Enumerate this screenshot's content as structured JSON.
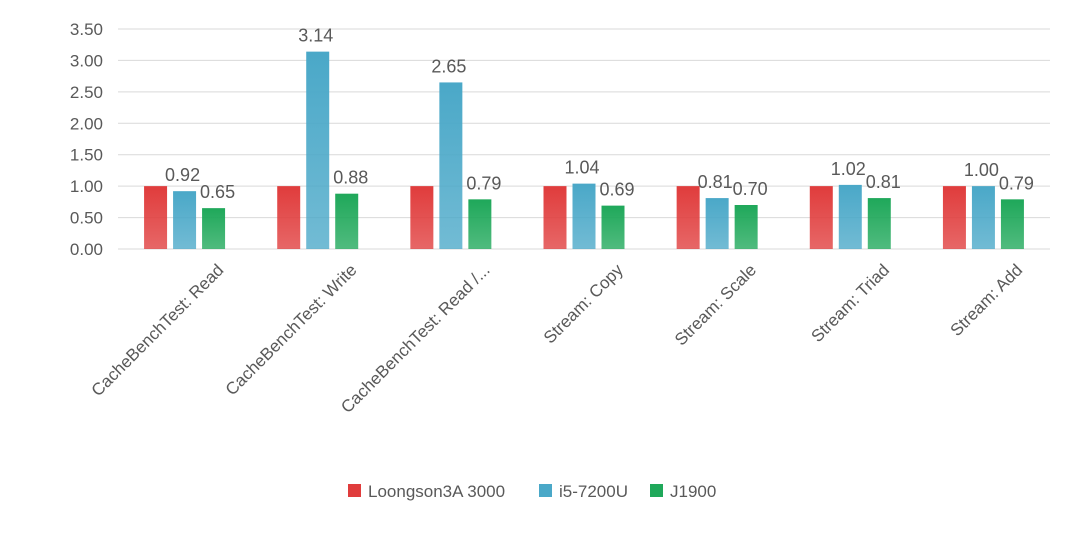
{
  "chart_data": {
    "type": "bar",
    "title": "",
    "xlabel": "",
    "ylabel": "",
    "ylim": [
      0,
      3.5
    ],
    "yticks": [
      "0.00",
      "0.50",
      "1.00",
      "1.50",
      "2.00",
      "2.50",
      "3.00",
      "3.50"
    ],
    "grid": true,
    "legend_position": "bottom",
    "categories": [
      "CacheBenchTest: Read",
      "CacheBenchTest: Write",
      "CacheBenchTest: Read /...",
      "Stream:    Copy",
      "Stream: Scale",
      "Stream: Triad",
      "Stream: Add"
    ],
    "series": [
      {
        "name": "Loongson3A 3000",
        "color": "#e03c3c",
        "values": [
          1.0,
          1.0,
          1.0,
          1.0,
          1.0,
          1.0,
          1.0
        ],
        "labels": [
          null,
          null,
          null,
          null,
          null,
          null,
          null
        ]
      },
      {
        "name": "i5-7200U",
        "color": "#4aa8c8",
        "values": [
          0.92,
          3.14,
          2.65,
          1.04,
          0.81,
          1.02,
          1.0
        ],
        "labels": [
          "0.92",
          "3.14",
          "2.65",
          "1.04",
          "0.81",
          "1.02",
          "1.00"
        ]
      },
      {
        "name": "J1900",
        "color": "#1fa85a",
        "values": [
          0.65,
          0.88,
          0.79,
          0.69,
          0.7,
          0.81,
          0.79
        ],
        "labels": [
          "0.65",
          "0.88",
          "0.79",
          "0.69",
          "0.70",
          "0.81",
          "0.79"
        ]
      }
    ]
  }
}
